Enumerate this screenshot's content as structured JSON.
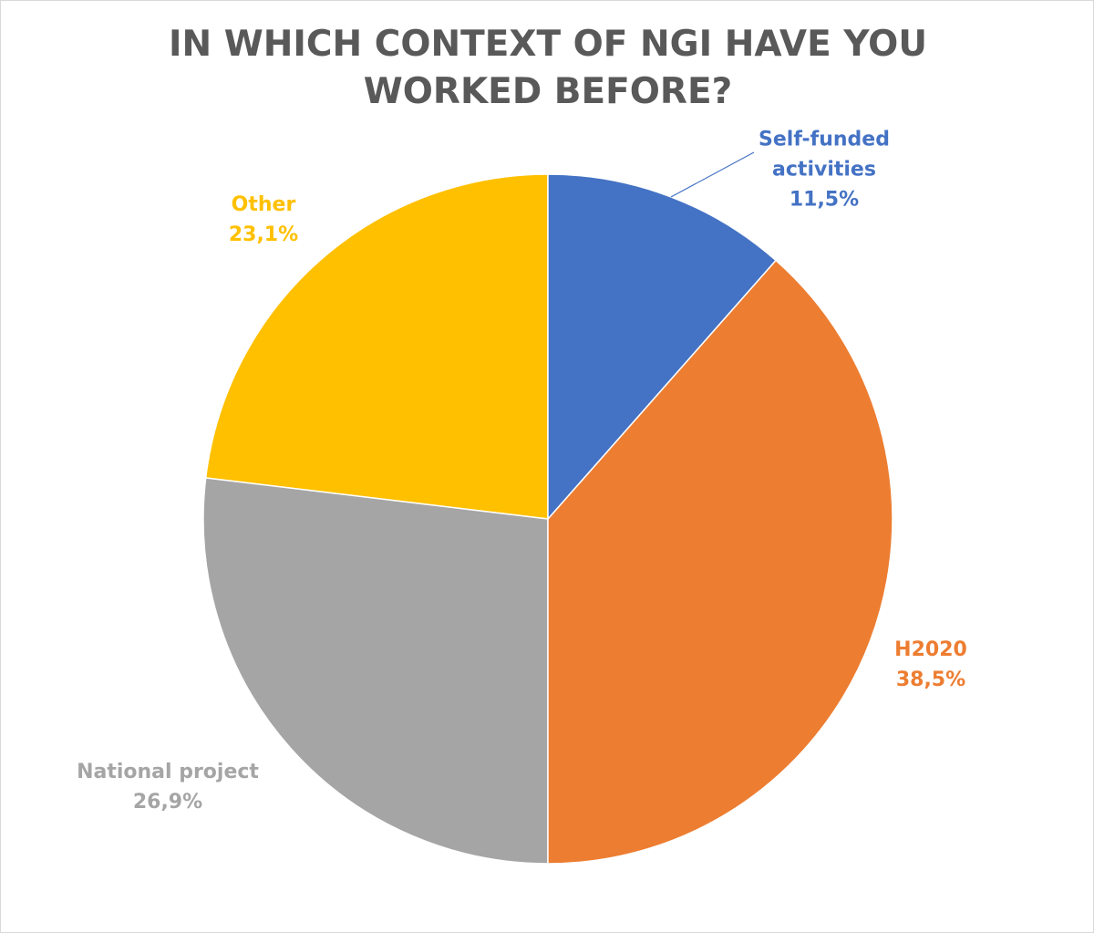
{
  "chart_data": {
    "type": "pie",
    "title": "IN WHICH CONTEXT OF NGI HAVE YOU WORKED BEFORE?",
    "categories": [
      "Self-funded activities",
      "H2020",
      "National project",
      "Other"
    ],
    "values": [
      11.5,
      38.5,
      26.9,
      23.1
    ],
    "value_labels": [
      "11,5%",
      "38,5%",
      "26,9%",
      "23,1%"
    ],
    "colors": [
      "#4472c4",
      "#ed7d31",
      "#a5a5a5",
      "#ffc000"
    ]
  }
}
